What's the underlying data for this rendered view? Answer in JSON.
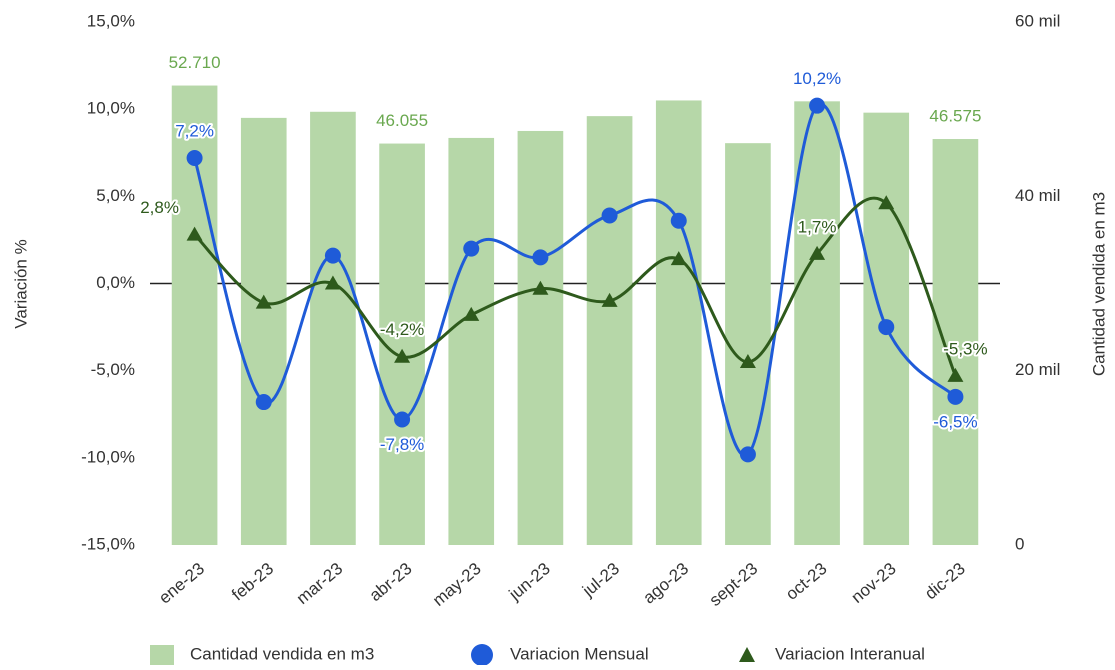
{
  "chart_data": {
    "type": "combo",
    "categories": [
      "ene-23",
      "feb-23",
      "mar-23",
      "abr-23",
      "may-23",
      "jun-23",
      "jul-23",
      "ago-23",
      "sept-23",
      "oct-23",
      "nov-23",
      "dic-23"
    ],
    "ylabel": "Variación %",
    "y2label": "Cantidad vendida en m3",
    "ylim": [
      -15,
      15
    ],
    "yticks": [
      {
        "value": -15,
        "label": "-15,0%"
      },
      {
        "value": -10,
        "label": "-10,0%"
      },
      {
        "value": -5,
        "label": "-5,0%"
      },
      {
        "value": 0,
        "label": "0,0%"
      },
      {
        "value": 5,
        "label": "5,0%"
      },
      {
        "value": 10,
        "label": "10,0%"
      },
      {
        "value": 15,
        "label": "15,0%"
      }
    ],
    "y2lim": [
      0,
      60000
    ],
    "y2ticks": [
      0,
      {
        "value": 20000,
        "label": "20 mil"
      },
      {
        "value": 40000,
        "label": "40 mil"
      },
      {
        "value": 60000,
        "label": "60 mil"
      }
    ],
    "legend": "bottom",
    "series": [
      {
        "name": "Cantidad vendida en m3",
        "type": "bar",
        "axis": "y2",
        "color": "#b6d7a8",
        "label_color": "#6aa84f",
        "values": [
          52710,
          49000,
          49700,
          46055,
          46700,
          47500,
          49200,
          51000,
          46100,
          50900,
          49600,
          46575
        ],
        "value_labels": [
          "52.710",
          null,
          null,
          "46.055",
          null,
          null,
          null,
          null,
          null,
          null,
          null,
          "46.575"
        ]
      },
      {
        "name": "Variacion Mensual",
        "type": "line",
        "marker": "circle",
        "color": "#1f5bd8",
        "values": [
          7.2,
          -6.8,
          1.6,
          -7.8,
          2.0,
          1.5,
          3.9,
          3.6,
          -9.8,
          10.2,
          -2.5,
          -6.5
        ],
        "value_labels": [
          "7,2%",
          null,
          null,
          "-7,8%",
          null,
          null,
          null,
          null,
          null,
          "10,2%",
          null,
          "-6,5%"
        ]
      },
      {
        "name": "Variacion Interanual",
        "type": "line",
        "marker": "triangle",
        "color": "#2e5a1c",
        "values": [
          2.8,
          -1.1,
          0,
          -4.2,
          -1.8,
          -0.3,
          -1.0,
          1.4,
          -4.5,
          1.7,
          4.6,
          -5.3
        ],
        "value_labels": [
          "2,8%",
          null,
          null,
          "-4,2%",
          null,
          null,
          null,
          null,
          null,
          "1,7%",
          null,
          "-5,3%"
        ]
      }
    ]
  }
}
